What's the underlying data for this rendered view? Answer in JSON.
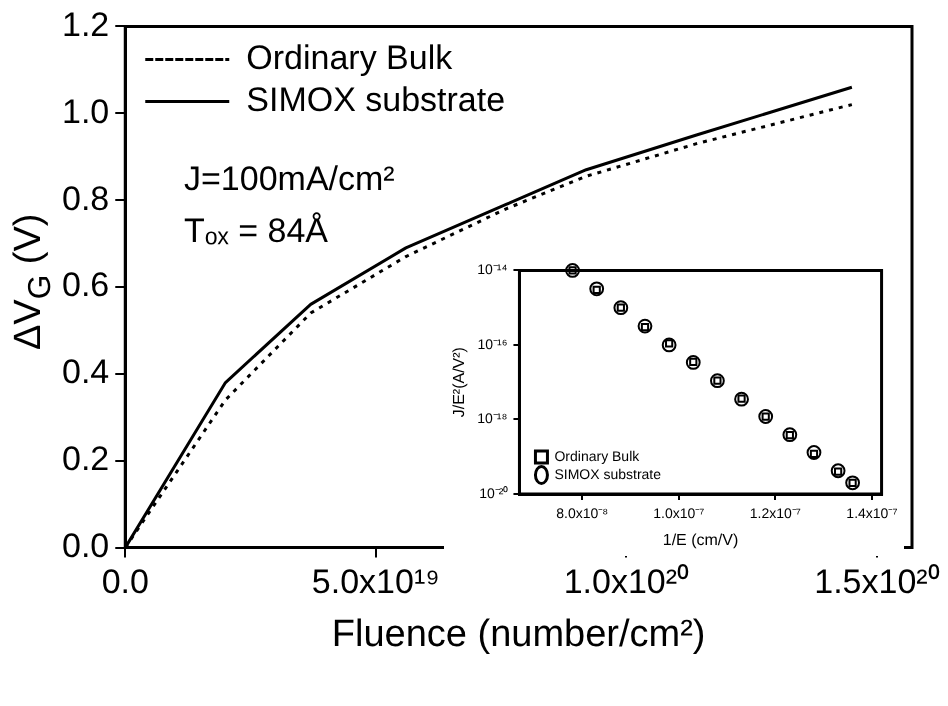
{
  "chart_data": [
    {
      "type": "line",
      "xlabel": "Fluence (number/cm²)",
      "ylabel": "ΔV$_{G}$ (V)",
      "x": [
        0,
        2e+19,
        3.7e+19,
        5.6e+19,
        7.6e+19,
        9.2e+19,
        1.14e+20,
        1.45e+20
      ],
      "series": [
        {
          "name": "Ordinary Bulk",
          "color": "#000000",
          "line_style": "dotted",
          "values": [
            0,
            0.34,
            0.54,
            0.67,
            0.78,
            0.855,
            0.93,
            1.02
          ]
        },
        {
          "name": "SIMOX substrate",
          "color": "#000000",
          "line_style": "solid",
          "values": [
            0,
            0.38,
            0.56,
            0.69,
            0.79,
            0.87,
            0.95,
            1.06
          ]
        }
      ],
      "xlim": [
        0,
        1.57e+20
      ],
      "ylim": [
        0,
        1.2
      ],
      "xticks": [
        {
          "value": 0,
          "label": "0.0"
        },
        {
          "value": 5e+19,
          "label": "5.0x10¹⁹"
        },
        {
          "value": 1e+20,
          "label": "1.0x10²⁰"
        },
        {
          "value": 1.5e+20,
          "label": "1.5x10²⁰"
        }
      ],
      "yticks": [
        {
          "value": 0,
          "label": "0.0"
        },
        0.2,
        0.4,
        0.6,
        0.8,
        {
          "value": 1,
          "label": "1.0"
        },
        1.2
      ],
      "annotations": [
        "J=100mA/cm²",
        "Tₒₓ = 84Å"
      ],
      "legend": "top left",
      "grid": false,
      "marker": "none"
    },
    {
      "type": "scatter",
      "xlabel": "1/E (cm/V)",
      "ylabel": "J/E²(A/V²)",
      "x": [
        7.8e-08,
        8.3e-08,
        8.8e-08,
        9.3e-08,
        9.8e-08,
        1.03e-07,
        1.08e-07,
        1.13e-07,
        1.18e-07,
        1.23e-07,
        1.28e-07,
        1.33e-07,
        1.36e-07
      ],
      "series": [
        {
          "name": "Ordinary Bulk",
          "color": "#000000",
          "marker": "square",
          "values": [
            1e-14,
            3e-15,
            1e-15,
            3e-16,
            1.1e-16,
            3.5e-17,
            1.1e-17,
            3.6e-18,
            1.2e-18,
            3.8e-19,
            1.2e-19,
            4e-20,
            2e-20
          ]
        },
        {
          "name": "SIMOX substrate",
          "color": "#000000",
          "marker": "circle",
          "values": [
            1e-14,
            3.2e-15,
            1e-15,
            3.2e-16,
            1e-16,
            3.4e-17,
            1.1e-17,
            3.5e-18,
            1.2e-18,
            3.9e-19,
            1.3e-19,
            4.2e-20,
            2e-20
          ]
        }
      ],
      "log": "y",
      "xlim": [
        6.7e-08,
        1.42e-07
      ],
      "ylim": [
        1e-20,
        1e-14
      ],
      "xticks": [
        {
          "value": 8e-08,
          "label": "8.0x10⁻⁸"
        },
        {
          "value": 1e-07,
          "label": "1.0x10⁻⁷"
        },
        {
          "value": 1.2e-07,
          "label": "1.2x10⁻⁷"
        },
        {
          "value": 1.4e-07,
          "label": "1.4x10⁻⁷"
        }
      ],
      "yticks": [
        {
          "value": 1e-20,
          "label": "10⁻²⁰"
        },
        {
          "value": 1e-18,
          "label": "10⁻¹⁸"
        },
        {
          "value": 1e-16,
          "label": "10⁻¹⁶"
        },
        {
          "value": 1e-14,
          "label": "10⁻¹⁴"
        }
      ],
      "legend": "bottom left",
      "grid": false
    }
  ]
}
